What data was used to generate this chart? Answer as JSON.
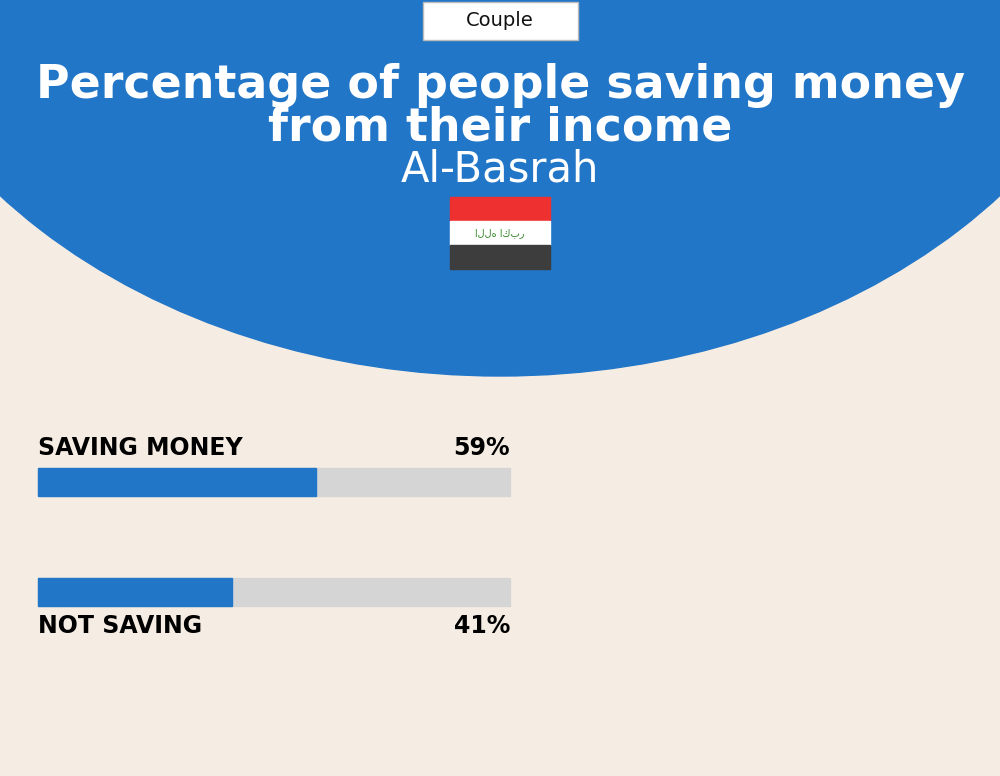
{
  "title_line1": "Percentage of people saving money",
  "title_line2": "from their income",
  "subtitle": "Al-Basrah",
  "tab_label": "Couple",
  "category1_label": "SAVING MONEY",
  "category1_value": 59,
  "category1_pct": "59%",
  "category2_label": "NOT SAVING",
  "category2_value": 41,
  "category2_pct": "41%",
  "blue_color": "#2176C8",
  "bar_bg_color": "#D5D5D5",
  "bg_top_color": "#2176C8",
  "bg_bottom_color": "#F5EDE3",
  "title_color": "#FFFFFF",
  "subtitle_color": "#FFFFFF",
  "label_color": "#000000",
  "tab_bg": "#FFFFFF",
  "tab_text": "#111111",
  "flag_red": "#EE3030",
  "flag_white": "#FFFFFF",
  "flag_black": "#3D3D3D",
  "flag_green": "#3A8A2E"
}
